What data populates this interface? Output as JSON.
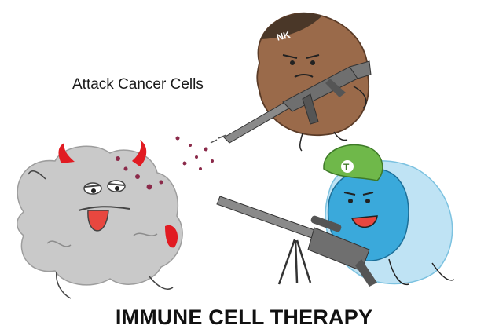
{
  "illustration": {
    "caption": "Attack Cancer Cells",
    "title": "IMMUNE CELL THERAPY",
    "nk_helmet_label": "NK",
    "t_helmet_label": "T",
    "colors": {
      "cancer_cell": "#c9c9c9",
      "devil_horns": "#e11b22",
      "nk_cell": "#9a6a4a",
      "nk_helmet": "#4a3728",
      "t_cell_outer": "#bfe3f4",
      "t_cell_inner": "#3aa9db",
      "t_helmet": "#6fb84a",
      "rifle": "#8a8a8a"
    },
    "icons": [
      "cancer-cell-icon",
      "nk-cell-icon",
      "t-cell-icon",
      "assault-rifle-icon",
      "sniper-rifle-icon"
    ]
  }
}
